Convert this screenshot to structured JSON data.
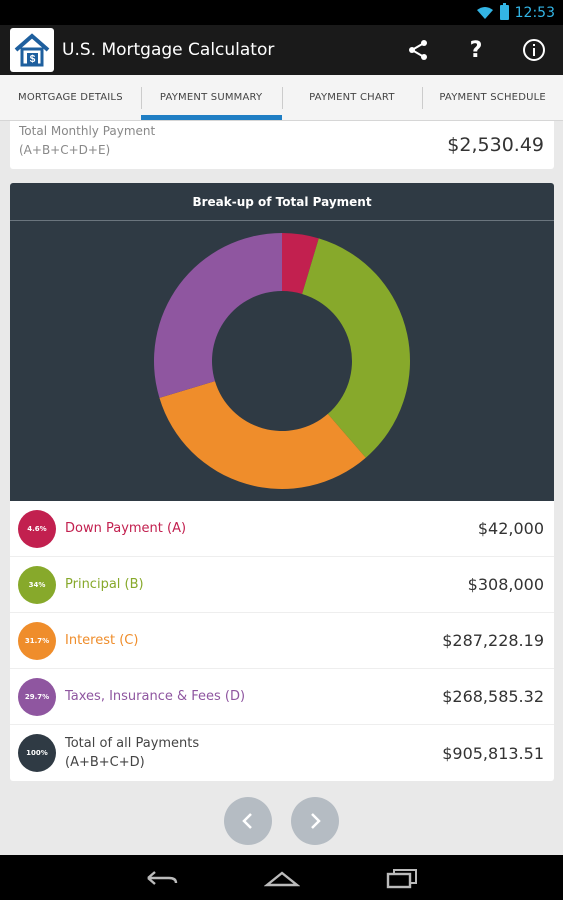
{
  "status": {
    "time": "12:53"
  },
  "app": {
    "title": "U.S. Mortgage Calculator"
  },
  "actions": {
    "share_icon": "share-icon",
    "help_icon": "question-icon",
    "info_icon": "info-icon",
    "help_glyph": "?",
    "info_glyph": "i"
  },
  "tabs": [
    {
      "label": "MORTGAGE DETAILS",
      "active": false
    },
    {
      "label": "PAYMENT SUMMARY",
      "active": true
    },
    {
      "label": "PAYMENT CHART",
      "active": false
    },
    {
      "label": "PAYMENT SCHEDULE",
      "active": false
    }
  ],
  "monthly": {
    "label": "Total Monthly Payment",
    "formula": "(A+B+C+D+E)",
    "value": "$2,530.49"
  },
  "chart": {
    "title": "Break-up of Total Payment"
  },
  "chart_data": {
    "type": "pie",
    "title": "Break-up of Total Payment",
    "donut": true,
    "series": [
      {
        "name": "Down Payment (A)",
        "value": 42000,
        "percent": 4.6,
        "color": "#c2204f"
      },
      {
        "name": "Principal (B)",
        "value": 308000,
        "percent": 34,
        "color": "#87a92b"
      },
      {
        "name": "Interest (C)",
        "value": 287228.19,
        "percent": 31.7,
        "color": "#ef8d2b"
      },
      {
        "name": "Taxes, Insurance & Fees (D)",
        "value": 268585.32,
        "percent": 29.7,
        "color": "#8f56a0"
      }
    ]
  },
  "rows": [
    {
      "pct": "4.6%",
      "label": "Down Payment (A)",
      "value": "$42,000",
      "color": "#c2204f"
    },
    {
      "pct": "34%",
      "label": "Principal (B)",
      "value": "$308,000",
      "color": "#87a92b"
    },
    {
      "pct": "31.7%",
      "label": "Interest (C)",
      "value": "$287,228.19",
      "color": "#ef8d2b"
    },
    {
      "pct": "29.7%",
      "label": "Taxes, Insurance & Fees (D)",
      "value": "$268,585.32",
      "color": "#8f56a0"
    }
  ],
  "total": {
    "pct": "100%",
    "label": "Total of all Payments",
    "formula": "(A+B+C+D)",
    "value": "$905,813.51",
    "color": "#2f3a44"
  },
  "nav": {
    "prev_icon": "chevron-left-icon",
    "next_icon": "chevron-right-icon"
  },
  "system": {
    "back_icon": "back-icon",
    "home_icon": "home-icon",
    "recents_icon": "recents-icon"
  }
}
